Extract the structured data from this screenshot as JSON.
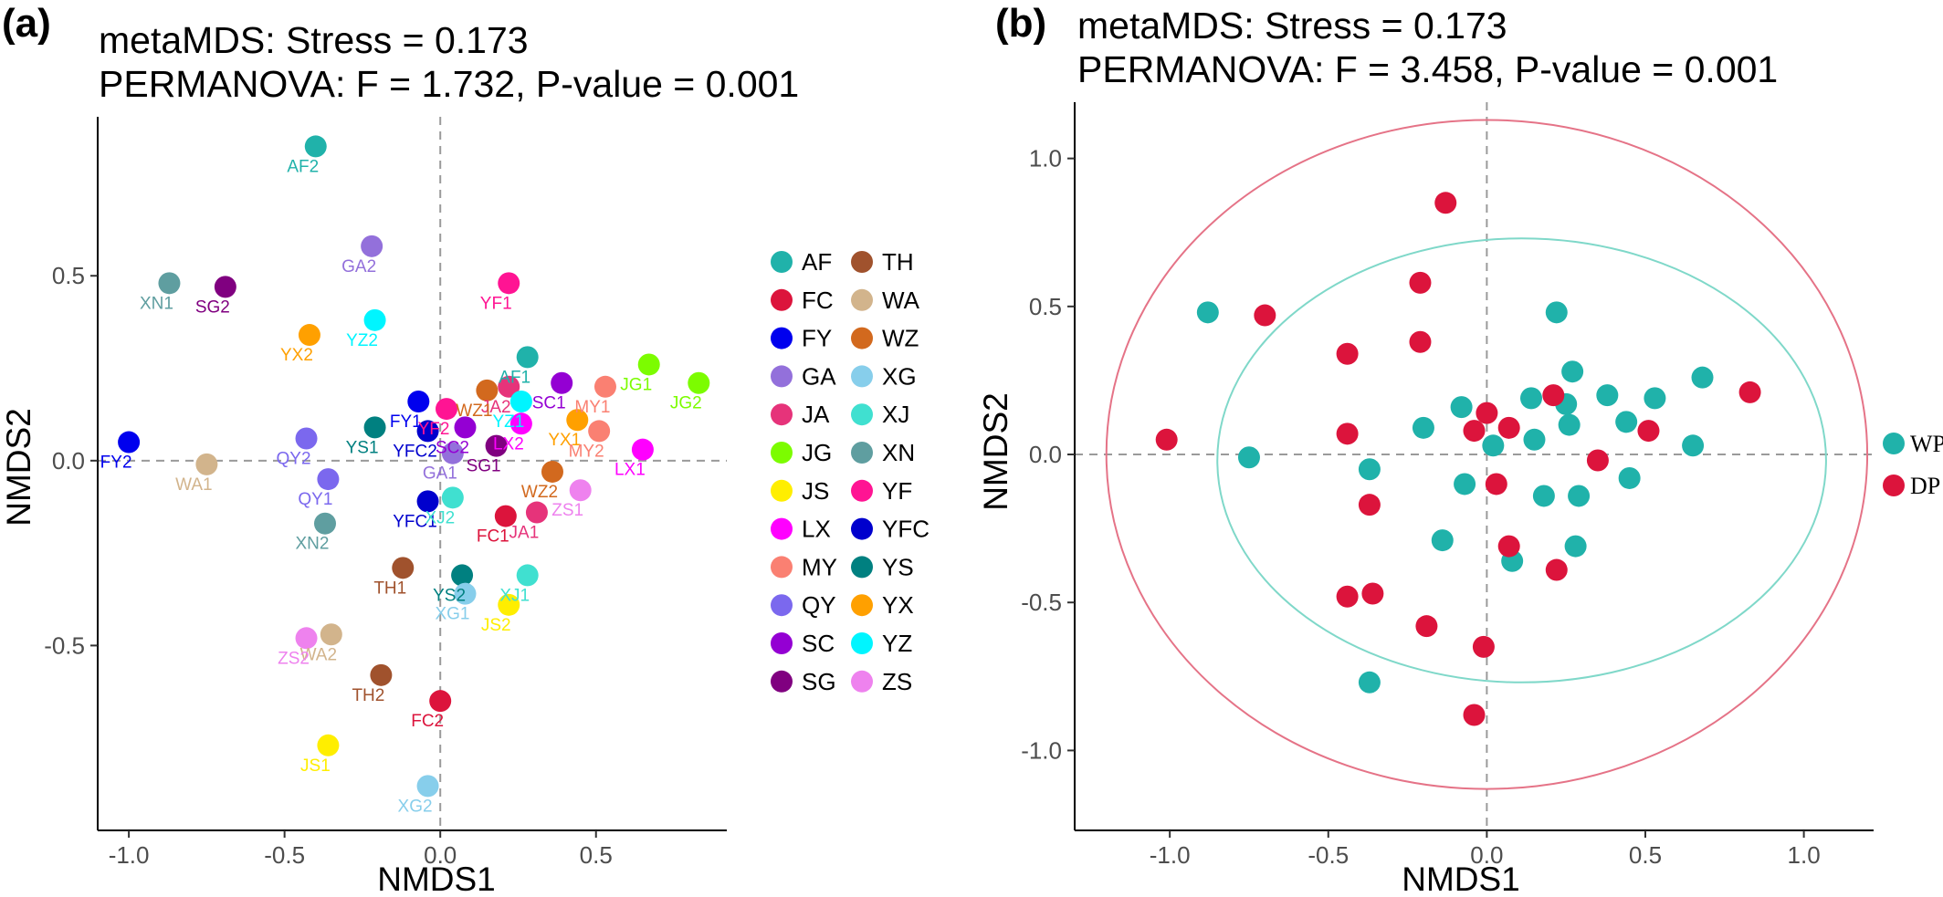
{
  "colors": {
    "AF": "#20b2aa",
    "FC": "#dc143c",
    "FY": "#0000ee",
    "GA": "#9370db",
    "JA": "#e6337a",
    "JG": "#7cfc00",
    "JS": "#ffee00",
    "LX": "#ff00ff",
    "MY": "#fa8072",
    "QY": "#7b68ee",
    "SC": "#9400d3",
    "SG": "#800080",
    "TH": "#a0522d",
    "WA": "#d2b48c",
    "WZ": "#d2691e",
    "XG": "#87ceeb",
    "XJ": "#40e0d0",
    "XN": "#5f9ea0",
    "YF": "#ff1493",
    "YFC": "#0000cd",
    "YS": "#008080",
    "YX": "#ffa000",
    "YZ": "#00f5ff",
    "ZS": "#ee82ee",
    "WP": "#20b2aa",
    "DP": "#dc143c",
    "ellipse_WP": "#7fd8c9",
    "ellipse_DP": "#e57387"
  },
  "chart_data": [
    {
      "panel": "(a)",
      "type": "scatter",
      "title_line1": "metaMDS: Stress = 0.173",
      "title_line2": "PERMANOVA: F = 1.732, P-value = 0.001",
      "xlabel": "NMDS1",
      "ylabel": "NMDS2",
      "xlim": [
        -1.1,
        0.92
      ],
      "ylim": [
        -1.0,
        0.93
      ],
      "xticks": [
        -1.0,
        -0.5,
        0.0,
        0.5
      ],
      "xtick_labels": [
        "-1.0",
        "-0.5",
        "0.0",
        "0.5"
      ],
      "yticks": [
        -0.5,
        0.0,
        0.5
      ],
      "ytick_labels": [
        "-0.5",
        "0.0",
        "0.5"
      ],
      "reference_lines": {
        "x": 0,
        "y": 0
      },
      "legend_rows": [
        [
          "AF",
          "TH"
        ],
        [
          "FC",
          "WA"
        ],
        [
          "FY",
          "WZ"
        ],
        [
          "GA",
          "XG"
        ],
        [
          "JA",
          "XJ"
        ],
        [
          "JG",
          "XN"
        ],
        [
          "JS",
          "YF"
        ],
        [
          "LX",
          "YFC"
        ],
        [
          "MY",
          "YS"
        ],
        [
          "QY",
          "YX"
        ],
        [
          "SC",
          "YZ"
        ],
        [
          "SG",
          "ZS"
        ]
      ],
      "points": [
        {
          "label": "AF2",
          "group": "AF",
          "x": -0.4,
          "y": 0.85
        },
        {
          "label": "AF1",
          "group": "AF",
          "x": 0.28,
          "y": 0.28
        },
        {
          "label": "XN1",
          "group": "XN",
          "x": -0.87,
          "y": 0.48
        },
        {
          "label": "SG2",
          "group": "SG",
          "x": -0.69,
          "y": 0.47
        },
        {
          "label": "GA2",
          "group": "GA",
          "x": -0.22,
          "y": 0.58
        },
        {
          "label": "YF1",
          "group": "YF",
          "x": 0.22,
          "y": 0.48
        },
        {
          "label": "YZ2",
          "group": "YZ",
          "x": -0.21,
          "y": 0.38
        },
        {
          "label": "YX2",
          "group": "YX",
          "x": -0.42,
          "y": 0.34
        },
        {
          "label": "JG1",
          "group": "JG",
          "x": 0.67,
          "y": 0.26
        },
        {
          "label": "JG2",
          "group": "JG",
          "x": 0.83,
          "y": 0.21
        },
        {
          "label": "FY1",
          "group": "FY",
          "x": -0.07,
          "y": 0.16
        },
        {
          "label": "YF2",
          "group": "YF",
          "x": 0.02,
          "y": 0.14
        },
        {
          "label": "JA2",
          "group": "JA",
          "x": 0.22,
          "y": 0.2
        },
        {
          "label": "SC1",
          "group": "SC",
          "x": 0.39,
          "y": 0.21
        },
        {
          "label": "MY1",
          "group": "MY",
          "x": 0.53,
          "y": 0.2
        },
        {
          "label": "WZ1",
          "group": "WZ",
          "x": 0.15,
          "y": 0.19
        },
        {
          "label": "YZ1",
          "group": "YZ",
          "x": 0.26,
          "y": 0.16
        },
        {
          "label": "YX1",
          "group": "YX",
          "x": 0.44,
          "y": 0.11
        },
        {
          "label": "YS1",
          "group": "YS",
          "x": -0.21,
          "y": 0.09
        },
        {
          "label": "YFC2",
          "group": "YFC",
          "x": -0.04,
          "y": 0.08
        },
        {
          "label": "SC2",
          "group": "SC",
          "x": 0.08,
          "y": 0.09
        },
        {
          "label": "LX2",
          "group": "LX",
          "x": 0.26,
          "y": 0.1
        },
        {
          "label": "MY2",
          "group": "MY",
          "x": 0.51,
          "y": 0.08
        },
        {
          "label": "FY2",
          "group": "FY",
          "x": -1.0,
          "y": 0.05
        },
        {
          "label": "QY2",
          "group": "QY",
          "x": -0.43,
          "y": 0.06
        },
        {
          "label": "LX1",
          "group": "LX",
          "x": 0.65,
          "y": 0.03
        },
        {
          "label": "SG1",
          "group": "SG",
          "x": 0.18,
          "y": 0.04
        },
        {
          "label": "GA1",
          "group": "GA",
          "x": 0.04,
          "y": 0.02
        },
        {
          "label": "WA1",
          "group": "WA",
          "x": -0.75,
          "y": -0.01
        },
        {
          "label": "QY1",
          "group": "QY",
          "x": -0.36,
          "y": -0.05
        },
        {
          "label": "WZ2",
          "group": "WZ",
          "x": 0.36,
          "y": -0.03
        },
        {
          "label": "ZS1",
          "group": "ZS",
          "x": 0.45,
          "y": -0.08
        },
        {
          "label": "YFC1",
          "group": "YFC",
          "x": -0.04,
          "y": -0.11
        },
        {
          "label": "XJ2",
          "group": "XJ",
          "x": 0.04,
          "y": -0.1
        },
        {
          "label": "FC1",
          "group": "FC",
          "x": 0.21,
          "y": -0.15
        },
        {
          "label": "JA1",
          "group": "JA",
          "x": 0.31,
          "y": -0.14
        },
        {
          "label": "XN2",
          "group": "XN",
          "x": -0.37,
          "y": -0.17
        },
        {
          "label": "TH1",
          "group": "TH",
          "x": -0.12,
          "y": -0.29
        },
        {
          "label": "YS2",
          "group": "YS",
          "x": 0.07,
          "y": -0.31
        },
        {
          "label": "XJ1",
          "group": "XJ",
          "x": 0.28,
          "y": -0.31
        },
        {
          "label": "XG1",
          "group": "XG",
          "x": 0.08,
          "y": -0.36
        },
        {
          "label": "JS2",
          "group": "JS",
          "x": 0.22,
          "y": -0.39
        },
        {
          "label": "WA2",
          "group": "WA",
          "x": -0.35,
          "y": -0.47
        },
        {
          "label": "ZS2",
          "group": "ZS",
          "x": -0.43,
          "y": -0.48
        },
        {
          "label": "TH2",
          "group": "TH",
          "x": -0.19,
          "y": -0.58
        },
        {
          "label": "FC2",
          "group": "FC",
          "x": 0.0,
          "y": -0.65
        },
        {
          "label": "JS1",
          "group": "JS",
          "x": -0.36,
          "y": -0.77
        },
        {
          "label": "XG2",
          "group": "XG",
          "x": -0.04,
          "y": -0.88
        }
      ]
    },
    {
      "panel": "(b)",
      "type": "scatter",
      "title_line1": "metaMDS: Stress = 0.173",
      "title_line2": "PERMANOVA: F = 3.458, P-value = 0.001",
      "xlabel": "NMDS1",
      "ylabel": "NMDS2",
      "xlim": [
        -1.3,
        1.22
      ],
      "ylim": [
        -1.27,
        1.19
      ],
      "xticks": [
        -1.0,
        -0.5,
        0.0,
        0.5,
        1.0
      ],
      "xtick_labels": [
        "-1.0",
        "-0.5",
        "0.0",
        "0.5",
        "1.0"
      ],
      "yticks": [
        -1.0,
        -0.5,
        0.0,
        0.5,
        1.0
      ],
      "ytick_labels": [
        "-1.0",
        "-0.5",
        "0.0",
        "0.5",
        "1.0"
      ],
      "reference_lines": {
        "x": 0,
        "y": 0
      },
      "legend": [
        {
          "name": "WP",
          "group": "WP"
        },
        {
          "name": "DP",
          "group": "DP"
        }
      ],
      "ellipses": [
        {
          "group": "DP",
          "cx": 0.0,
          "cy": 0.0,
          "rx": 1.2,
          "ry": 1.13
        },
        {
          "group": "WP",
          "cx": 0.11,
          "cy": -0.02,
          "rx": 0.96,
          "ry": 0.75
        }
      ],
      "series": [
        {
          "name": "WP",
          "points": [
            [
              -0.88,
              0.48
            ],
            [
              -0.75,
              -0.01
            ],
            [
              -0.37,
              -0.05
            ],
            [
              -0.37,
              -0.77
            ],
            [
              -0.2,
              0.09
            ],
            [
              -0.08,
              0.16
            ],
            [
              -0.07,
              -0.1
            ],
            [
              -0.14,
              -0.29
            ],
            [
              0.02,
              0.03
            ],
            [
              0.08,
              -0.36
            ],
            [
              0.14,
              0.19
            ],
            [
              0.15,
              0.05
            ],
            [
              0.18,
              -0.14
            ],
            [
              0.22,
              0.48
            ],
            [
              0.25,
              0.17
            ],
            [
              0.26,
              0.1
            ],
            [
              0.27,
              0.28
            ],
            [
              0.28,
              -0.31
            ],
            [
              0.29,
              -0.14
            ],
            [
              0.38,
              0.2
            ],
            [
              0.44,
              0.11
            ],
            [
              0.45,
              -0.08
            ],
            [
              0.53,
              0.19
            ],
            [
              0.65,
              0.03
            ],
            [
              0.68,
              0.26
            ]
          ]
        },
        {
          "name": "DP",
          "points": [
            [
              -1.01,
              0.05
            ],
            [
              -0.7,
              0.47
            ],
            [
              -0.44,
              0.34
            ],
            [
              -0.44,
              0.07
            ],
            [
              -0.44,
              -0.48
            ],
            [
              -0.37,
              -0.17
            ],
            [
              -0.36,
              -0.47
            ],
            [
              -0.21,
              0.58
            ],
            [
              -0.21,
              0.38
            ],
            [
              -0.19,
              -0.58
            ],
            [
              -0.13,
              0.85
            ],
            [
              -0.04,
              0.08
            ],
            [
              -0.04,
              -0.88
            ],
            [
              -0.01,
              -0.65
            ],
            [
              0.0,
              0.14
            ],
            [
              0.03,
              -0.1
            ],
            [
              0.07,
              0.09
            ],
            [
              0.07,
              -0.31
            ],
            [
              0.21,
              0.2
            ],
            [
              0.22,
              -0.39
            ],
            [
              0.35,
              -0.02
            ],
            [
              0.51,
              0.08
            ],
            [
              0.83,
              0.21
            ]
          ]
        }
      ]
    }
  ]
}
